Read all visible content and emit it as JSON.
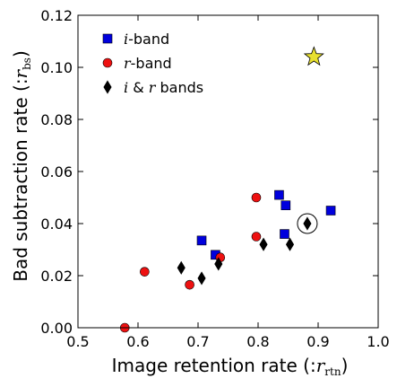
{
  "chart_data": {
    "type": "scatter",
    "xlabel": "Image retention rate (:r",
    "xlabel_sub": "rtn",
    "xlabel_close": ")",
    "ylabel": "Bad subtraction rate (:r",
    "ylabel_sub": "bs",
    "ylabel_close": ")",
    "xlim": [
      0.5,
      1.0
    ],
    "ylim": [
      0.0,
      0.12
    ],
    "xticks": [
      "0.5",
      "0.6",
      "0.7",
      "0.8",
      "0.9",
      "1.0"
    ],
    "yticks": [
      "0.00",
      "0.02",
      "0.04",
      "0.06",
      "0.08",
      "0.10",
      "0.12"
    ],
    "grid": false,
    "legend_position": "top-left",
    "series": [
      {
        "name": "i-band",
        "legend_italic": "i",
        "legend_rest": "-band",
        "marker": "square",
        "color": "#0000dd",
        "points": [
          {
            "x": 0.706,
            "y": 0.0335
          },
          {
            "x": 0.729,
            "y": 0.028
          },
          {
            "x": 0.835,
            "y": 0.051
          },
          {
            "x": 0.846,
            "y": 0.047
          },
          {
            "x": 0.844,
            "y": 0.036
          },
          {
            "x": 0.921,
            "y": 0.045
          }
        ]
      },
      {
        "name": "r-band",
        "legend_italic": "r",
        "legend_rest": "-band",
        "marker": "circle",
        "color": "#ee1111",
        "points": [
          {
            "x": 0.578,
            "y": 0.0
          },
          {
            "x": 0.611,
            "y": 0.0215
          },
          {
            "x": 0.686,
            "y": 0.0165
          },
          {
            "x": 0.737,
            "y": 0.027
          },
          {
            "x": 0.797,
            "y": 0.05
          },
          {
            "x": 0.797,
            "y": 0.035
          }
        ]
      },
      {
        "name": "i & r bands",
        "legend_italic": "i",
        "legend_rest": " & ",
        "legend_italic2": "r",
        "legend_rest2": " bands",
        "marker": "diamond",
        "color": "#000000",
        "points": [
          {
            "x": 0.672,
            "y": 0.023
          },
          {
            "x": 0.706,
            "y": 0.019
          },
          {
            "x": 0.734,
            "y": 0.0245
          },
          {
            "x": 0.809,
            "y": 0.032
          },
          {
            "x": 0.853,
            "y": 0.032
          },
          {
            "x": 0.882,
            "y": 0.04
          }
        ]
      }
    ],
    "highlight": {
      "marker": "star",
      "color": "#e8e030",
      "x": 0.893,
      "y": 0.104
    },
    "circled_point": {
      "x": 0.882,
      "y": 0.04
    }
  }
}
